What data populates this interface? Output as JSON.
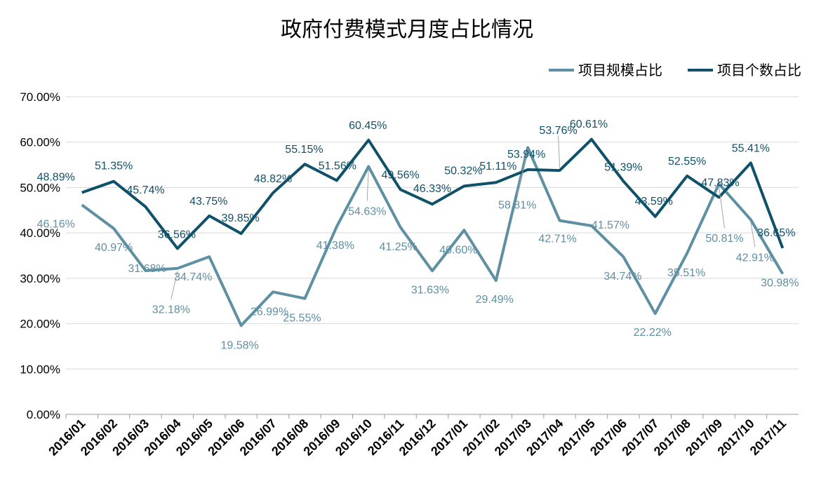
{
  "chart_data": {
    "type": "line",
    "title": "政府付费模式月度占比情况",
    "xlabel": "",
    "ylabel": "",
    "ylim": [
      0,
      70
    ],
    "y_ticks": [
      "0.00%",
      "10.00%",
      "20.00%",
      "30.00%",
      "40.00%",
      "50.00%",
      "60.00%",
      "70.00%"
    ],
    "grid": true,
    "legend_position": "top-right",
    "categories": [
      "2016/01",
      "2016/02",
      "2016/03",
      "2016/04",
      "2016/05",
      "2016/06",
      "2016/07",
      "2016/08",
      "2016/09",
      "2016/10",
      "2016/11",
      "2016/12",
      "2017/01",
      "2017/02",
      "2017/03",
      "2017/04",
      "2017/05",
      "2017/06",
      "2017/07",
      "2017/08",
      "2017/09",
      "2017/10",
      "2017/11"
    ],
    "series": [
      {
        "name": "项目规模占比",
        "color": "#5e8fa3",
        "values": [
          46.16,
          40.97,
          31.68,
          32.18,
          34.74,
          19.58,
          26.99,
          25.55,
          41.38,
          54.63,
          41.25,
          31.63,
          40.6,
          29.49,
          58.81,
          42.71,
          41.57,
          34.74,
          22.22,
          35.51,
          50.81,
          42.91,
          30.98
        ]
      },
      {
        "name": "项目个数占比",
        "color": "#0f5168",
        "values": [
          48.89,
          51.35,
          45.74,
          36.56,
          43.75,
          39.85,
          48.82,
          55.15,
          51.56,
          60.45,
          49.56,
          46.33,
          50.32,
          51.11,
          53.94,
          53.76,
          60.61,
          51.39,
          43.59,
          52.55,
          47.83,
          55.41,
          36.65
        ]
      }
    ]
  }
}
